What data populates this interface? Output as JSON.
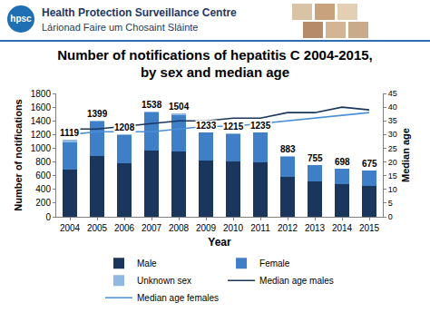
{
  "header": {
    "org_name": "Health Protection Surveillance Centre",
    "org_name_irish": "Lárionad Faire um Chosaint Sláinte",
    "logo": "hpsc"
  },
  "chart_data": {
    "type": "bar",
    "stacked": true,
    "title": "Number of notifications of hepatitis C 2004-2015, by sex and median age",
    "x_label": "Year",
    "y_label": "Number of notifications",
    "y2_label": "Median age",
    "categories": [
      "2004",
      "2005",
      "2006",
      "2007",
      "2008",
      "2009",
      "2010",
      "2011",
      "2012",
      "2013",
      "2014",
      "2015"
    ],
    "series": [
      {
        "name": "Male",
        "type": "bar",
        "color": "#1b365d",
        "values": [
          690,
          890,
          780,
          970,
          950,
          820,
          810,
          800,
          580,
          515,
          480,
          450
        ]
      },
      {
        "name": "Female",
        "type": "bar",
        "color": "#3f7fc7",
        "values": [
          399,
          494,
          408,
          558,
          539,
          408,
          400,
          430,
          300,
          238,
          216,
          223
        ]
      },
      {
        "name": "Unknown sex",
        "type": "bar",
        "color": "#8fb8e3",
        "values": [
          30,
          15,
          20,
          10,
          15,
          5,
          5,
          5,
          3,
          2,
          2,
          2
        ]
      },
      {
        "name": "Median age males",
        "type": "line",
        "axis": "y2",
        "color": "#1b365d",
        "line_style": "solid",
        "values": [
          32,
          32,
          33,
          34,
          35,
          35,
          36,
          36,
          38,
          38,
          40,
          39
        ]
      },
      {
        "name": "Median age females",
        "type": "line",
        "axis": "y2",
        "color": "#4a8fd6",
        "line_style": "solid",
        "values": [
          30,
          31,
          31,
          31,
          32,
          33,
          33,
          34,
          35,
          36,
          37,
          38
        ]
      }
    ],
    "totals": [
      1119,
      1399,
      1208,
      1538,
      1504,
      1233,
      1215,
      1235,
      883,
      755,
      698,
      675
    ],
    "ylim": [
      0,
      1800
    ],
    "yticks": [
      0,
      200,
      400,
      600,
      800,
      1000,
      1200,
      1400,
      1600,
      1800
    ],
    "y2lim": [
      0,
      45
    ],
    "y2ticks": [
      0,
      5,
      10,
      15,
      20,
      25,
      30,
      35,
      40,
      45
    ],
    "grid": false,
    "legend": "bottom"
  }
}
